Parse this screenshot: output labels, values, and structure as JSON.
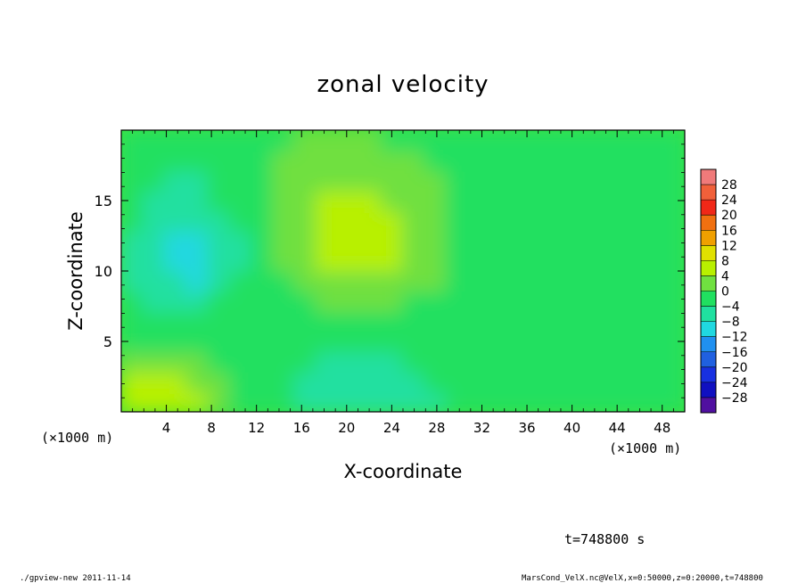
{
  "chart_data": {
    "type": "heatmap",
    "title": "zonal velocity",
    "xlabel": "X-coordinate",
    "ylabel": "Z-coordinate",
    "x_unit": "(×1000 m)",
    "xlim": [
      0,
      50
    ],
    "ylim": [
      0,
      20
    ],
    "x_ticks": [
      4,
      8,
      12,
      16,
      20,
      24,
      28,
      32,
      36,
      40,
      44,
      48
    ],
    "y_ticks": [
      5,
      10,
      15
    ],
    "colorbar_levels": [
      28,
      24,
      20,
      16,
      12,
      8,
      4,
      0,
      -4,
      -8,
      -12,
      -16,
      -20,
      -24,
      -28
    ],
    "colorbar_colors": [
      "#f07a7a",
      "#f0603a",
      "#f02818",
      "#f07010",
      "#f0a000",
      "#e0e000",
      "#b8f000",
      "#70e040",
      "#20e060",
      "#20e0a0",
      "#20d8e0",
      "#2090f0",
      "#2060e0",
      "#1830e0",
      "#1010c0",
      "#5010a0"
    ],
    "grid": false,
    "colorbar_position": "right",
    "z_field": [
      [
        6,
        6,
        5,
        4,
        1,
        -2,
        -3,
        -4,
        -5,
        -6,
        -7,
        -8,
        -8,
        -6,
        -5,
        -4,
        -2,
        -1,
        -1,
        -1,
        -1,
        -1,
        -2,
        -2,
        -2,
        -2
      ],
      [
        4,
        5,
        5,
        3,
        1,
        -2,
        -3,
        -4,
        -5,
        -7,
        -8,
        -8,
        -7,
        -5,
        -4,
        -3,
        -2,
        -1,
        -1,
        -1,
        -1,
        -2,
        -2,
        -2,
        -2,
        -2
      ],
      [
        1,
        1,
        1,
        0,
        -1,
        -2,
        -3,
        -3,
        -4,
        -6,
        -7,
        -6,
        -5,
        -4,
        -3,
        -2,
        -2,
        -2,
        -1,
        -1,
        -2,
        -2,
        -2,
        -2,
        -2,
        -2
      ],
      [
        -1,
        -2,
        -2,
        -1,
        -1,
        -1,
        -2,
        -3,
        -3,
        -4,
        -4,
        -4,
        -3,
        -3,
        -2,
        -2,
        -1,
        -1,
        -1,
        -1,
        -2,
        -2,
        -2,
        -2,
        -2,
        -2
      ],
      [
        -2,
        -3,
        -4,
        -3,
        -2,
        -1,
        -2,
        -2,
        -2,
        -2,
        -2,
        -2,
        -2,
        -2,
        -2,
        -1,
        -1,
        -1,
        -1,
        -2,
        -2,
        -2,
        -2,
        -2,
        -2,
        -2
      ],
      [
        -4,
        -5,
        -6,
        -6,
        -4,
        -2,
        -1,
        -1,
        -1,
        0,
        0,
        0,
        0,
        -1,
        -1,
        -1,
        -2,
        -2,
        -2,
        -2,
        -2,
        -2,
        -2,
        -2,
        -2,
        -2
      ],
      [
        -5,
        -7,
        -8,
        -9,
        -7,
        -4,
        -2,
        -1,
        0,
        1,
        3,
        3,
        2,
        1,
        0,
        -1,
        -2,
        -2,
        -2,
        -2,
        -2,
        -2,
        -2,
        -2,
        -2,
        -2
      ],
      [
        -6,
        -8,
        -10,
        -10,
        -8,
        -5,
        -2,
        0,
        2,
        4,
        5,
        5,
        4,
        2,
        0,
        -1,
        -2,
        -2,
        -2,
        -2,
        -2,
        -2,
        -2,
        -2,
        -2,
        -2
      ],
      [
        -5,
        -7,
        -9,
        -10,
        -8,
        -5,
        -2,
        0,
        3,
        5,
        6,
        6,
        5,
        3,
        0,
        -1,
        -2,
        -2,
        -2,
        -2,
        -2,
        -2,
        -2,
        -2,
        -2,
        -2
      ],
      [
        -4,
        -6,
        -7,
        -8,
        -6,
        -4,
        -2,
        0,
        3,
        4,
        5,
        5,
        4,
        2,
        0,
        -1,
        -2,
        -2,
        -2,
        -2,
        -2,
        -2,
        -2,
        -2,
        -2,
        -2
      ],
      [
        -3,
        -5,
        -6,
        -6,
        -4,
        -3,
        -1,
        0,
        2,
        4,
        4,
        4,
        3,
        1,
        0,
        -1,
        -2,
        -2,
        -2,
        -2,
        -2,
        -2,
        -2,
        -2,
        -2,
        -2
      ],
      [
        -2,
        -4,
        -5,
        -5,
        -3,
        -2,
        -1,
        0,
        1,
        2,
        3,
        3,
        2,
        1,
        0,
        -1,
        -2,
        -2,
        -2,
        -2,
        -2,
        -2,
        -2,
        -2,
        -2,
        -2
      ],
      [
        -2,
        -3,
        -4,
        -3,
        -2,
        -2,
        -1,
        0,
        1,
        1,
        2,
        1,
        1,
        0,
        -1,
        -1,
        -2,
        -2,
        -2,
        -2,
        -2,
        -2,
        -2,
        -2,
        -2,
        -2
      ],
      [
        -2,
        -3,
        -3,
        -3,
        -2,
        -2,
        -1,
        -1,
        0,
        0,
        0,
        0,
        -1,
        -1,
        -2,
        -2,
        -2,
        -2,
        -2,
        -2,
        -2,
        -2,
        -2,
        -2,
        -2,
        -2
      ]
    ]
  },
  "footer": {
    "time_label": "t=748800 s",
    "left_note": "./gpview-new  2011-11-14",
    "right_note": "MarsCond_VelX.nc@VelX,x=0:50000,z=0:20000,t=748800"
  }
}
